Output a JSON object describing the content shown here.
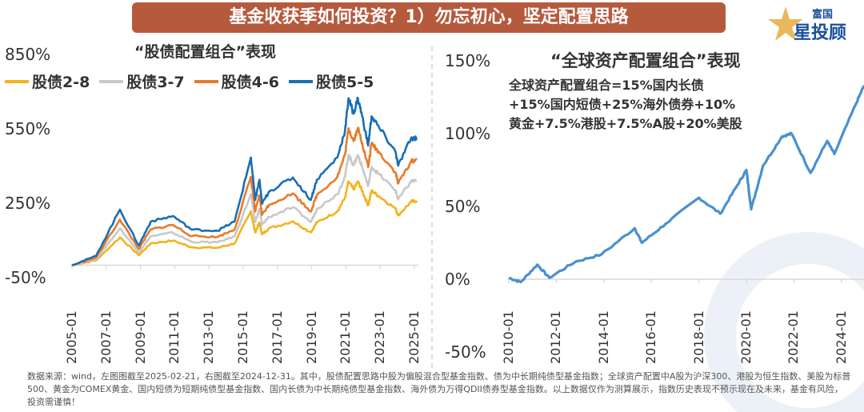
{
  "title": "基金收获季如何投资？1）勿忘初心，坚定配置思路",
  "logo": {
    "line1": "富国",
    "line2": "星投顾"
  },
  "footnote": "数据来源：wind，左图图截至2025-02-21，右图截至2024-12-31。其中，股债配置思路中股为偏股混合型基金指数、债为中长期纯债型基金指数；全球资产配置中A股为沪深300、港股为恒生指数、美股为标普500、黄金为COMEX黄金、国内短债为短期纯债型基金指数、国内长债为中长期纯债型基金指数、海外债为万得QDII债券型基金指数。以上数据仅作为测算展示，指数历史表现不预示现在及未来，基金有风险，投资需谨慎！",
  "chart_data": [
    {
      "type": "line",
      "title": "“股债配置组合”表现",
      "ylim": [
        -50,
        850
      ],
      "yticks": [
        "-50%",
        "250%",
        "550%",
        "850%"
      ],
      "ytick_values": [
        -50,
        250,
        550,
        850
      ],
      "xticks": [
        "2005-01",
        "2007-01",
        "2009-01",
        "2011-01",
        "2013-01",
        "2015-01",
        "2017-01",
        "2019-01",
        "2021-01",
        "2023-01",
        "2025-01"
      ],
      "xtick_values": [
        2005,
        2007,
        2009,
        2011,
        2013,
        2015,
        2017,
        2019,
        2021,
        2023,
        2025
      ],
      "legend_position": "top-left",
      "x": [
        2005.0,
        2006.4,
        2007.8,
        2008.9,
        2009.6,
        2010.9,
        2012.0,
        2013.5,
        2014.5,
        2015.45,
        2015.7,
        2015.95,
        2016.1,
        2016.5,
        2017.9,
        2018.95,
        2019.3,
        2020.5,
        2020.95,
        2021.15,
        2021.45,
        2021.7,
        2021.95,
        2022.3,
        2022.5,
        2022.95,
        2023.9,
        2024.05,
        2024.8,
        2025.13
      ],
      "series": [
        {
          "name": "股债2-8",
          "color": "#f2b31c",
          "values": [
            0,
            19,
            112,
            40,
            88,
            99,
            72,
            70,
            88,
            217,
            132,
            172,
            124,
            148,
            177,
            132,
            172,
            217,
            272,
            337,
            305,
            337,
            300,
            241,
            300,
            277,
            228,
            201,
            255,
            260
          ]
        },
        {
          "name": "股债3-7",
          "color": "#c8c8c8",
          "values": [
            0,
            24,
            148,
            52,
            116,
            131,
            94,
            92,
            116,
            286,
            174,
            227,
            163,
            195,
            233,
            174,
            227,
            286,
            358,
            444,
            403,
            444,
            396,
            318,
            396,
            365,
            301,
            265,
            337,
            342
          ]
        },
        {
          "name": "股债4-6",
          "color": "#e87a2c",
          "values": [
            0,
            30,
            184,
            65,
            144,
            162,
            117,
            114,
            144,
            356,
            216,
            282,
            203,
            243,
            289,
            216,
            282,
            356,
            445,
            552,
            500,
            552,
            492,
            395,
            492,
            453,
            374,
            329,
            418,
            424
          ]
        },
        {
          "name": "股债5-5",
          "color": "#1a6fb4",
          "values": [
            0,
            37,
            224,
            79,
            176,
            198,
            143,
            139,
            176,
            434,
            263,
            344,
            247,
            296,
            353,
            263,
            344,
            434,
            543,
            673,
            610,
            673,
            600,
            482,
            600,
            553,
            456,
            401,
            510,
            514
          ]
        }
      ]
    },
    {
      "type": "line",
      "title": "“全球资产配置组合”表现",
      "annotation": [
        "全球资产配置组合=15%国内长债",
        "+15%国内短债+25%海外债券+10%",
        "黄金+7.5%港股+7.5%A股+20%美股"
      ],
      "ylim": [
        -50,
        150
      ],
      "yticks": [
        "150%",
        "100%",
        "50%",
        "0%",
        "-50%"
      ],
      "ytick_values": [
        150,
        100,
        50,
        0,
        -50
      ],
      "xticks": [
        "2010-01",
        "2012-01",
        "2014-01",
        "2016-01",
        "2018-01",
        "2020-01",
        "2022-01",
        "2024-01"
      ],
      "xtick_values": [
        2010,
        2012,
        2014,
        2016,
        2018,
        2020,
        2022,
        2024
      ],
      "x": [
        2010.0,
        2010.5,
        2011.2,
        2011.7,
        2012.8,
        2013.9,
        2015.3,
        2015.6,
        2016.6,
        2018.0,
        2018.9,
        2019.6,
        2020.0,
        2020.2,
        2020.7,
        2021.5,
        2021.9,
        2022.7,
        2023.4,
        2023.7,
        2024.6,
        2024.95
      ],
      "series": [
        {
          "name": "全球资产配置组合",
          "color": "#4a90d0",
          "values": [
            1,
            -2,
            10,
            1,
            12,
            17,
            35,
            25,
            38,
            56,
            45,
            64,
            75,
            48,
            78,
            98,
            100,
            73,
            95,
            86,
            120,
            133
          ]
        }
      ]
    }
  ]
}
